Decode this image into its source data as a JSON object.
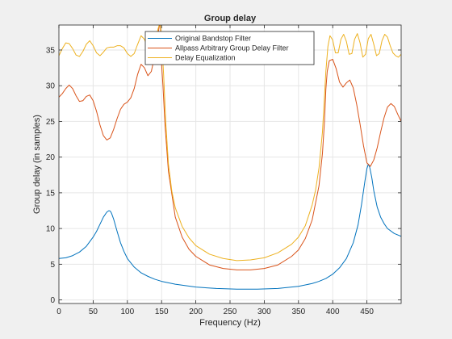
{
  "chart_data": {
    "type": "line",
    "title": "Group delay",
    "xlabel": "Frequency (Hz)",
    "ylabel": "Group delay (in samples)",
    "xlim": [
      0,
      500
    ],
    "ylim": [
      -0.5,
      38.5
    ],
    "xticks": [
      0,
      50,
      100,
      150,
      200,
      250,
      300,
      350,
      400,
      450
    ],
    "yticks": [
      0,
      5,
      10,
      15,
      20,
      25,
      30,
      35
    ],
    "grid": true,
    "legend_position": "top-center",
    "colors": {
      "background": "#f0f0f0",
      "axes_background": "#ffffff",
      "grid": "#e6e6e6",
      "axis": "#262626"
    },
    "series": [
      {
        "name": "Original Bandstop Filter",
        "color": "#0072bd",
        "x": [
          0,
          10,
          20,
          30,
          40,
          50,
          55,
          60,
          65,
          70,
          73,
          75,
          77,
          80,
          85,
          90,
          95,
          100,
          110,
          120,
          130,
          140,
          150,
          170,
          200,
          230,
          260,
          290,
          320,
          350,
          370,
          380,
          390,
          400,
          410,
          420,
          430,
          437,
          442,
          447,
          450,
          452,
          454,
          457,
          460,
          465,
          470,
          475,
          480,
          490,
          500
        ],
        "values": [
          5.8,
          5.9,
          6.2,
          6.7,
          7.5,
          8.8,
          9.6,
          10.6,
          11.6,
          12.3,
          12.5,
          12.45,
          12.1,
          11.3,
          9.6,
          8.0,
          6.8,
          5.8,
          4.6,
          3.8,
          3.3,
          2.9,
          2.6,
          2.2,
          1.8,
          1.6,
          1.5,
          1.5,
          1.6,
          1.9,
          2.3,
          2.6,
          3.0,
          3.6,
          4.5,
          5.8,
          8.0,
          10.5,
          13.3,
          16.6,
          18.4,
          19.0,
          18.6,
          17.2,
          15.3,
          13.0,
          11.6,
          10.7,
          10.0,
          9.3,
          8.9
        ]
      },
      {
        "name": "Allpass Arbitrary Group Delay Filter",
        "color": "#d95319",
        "x": [
          0,
          5,
          10,
          15,
          20,
          25,
          30,
          35,
          40,
          45,
          50,
          55,
          60,
          65,
          70,
          75,
          80,
          85,
          90,
          95,
          100,
          105,
          110,
          115,
          120,
          125,
          130,
          135,
          140,
          143,
          146,
          148,
          150,
          152,
          155,
          160,
          170,
          180,
          190,
          200,
          220,
          240,
          260,
          280,
          300,
          320,
          340,
          350,
          360,
          370,
          380,
          385,
          388,
          390,
          392,
          395,
          400,
          405,
          410,
          415,
          420,
          425,
          430,
          435,
          440,
          445,
          450,
          455,
          460,
          465,
          470,
          475,
          480,
          485,
          490,
          495,
          500
        ],
        "values": [
          28.4,
          28.9,
          29.6,
          30.1,
          29.6,
          28.6,
          27.8,
          27.9,
          28.5,
          28.7,
          27.9,
          26.4,
          24.5,
          23.0,
          22.4,
          22.7,
          23.9,
          25.4,
          26.7,
          27.4,
          27.7,
          28.3,
          29.6,
          31.6,
          33.0,
          32.5,
          31.4,
          32.0,
          34.2,
          36.0,
          38.0,
          39.0,
          33.0,
          30.0,
          24.5,
          18.0,
          11.6,
          8.8,
          7.1,
          6.1,
          4.9,
          4.4,
          4.2,
          4.2,
          4.4,
          4.9,
          6.1,
          7.0,
          8.6,
          11.2,
          16.0,
          20.5,
          25.0,
          29.5,
          32.0,
          33.5,
          33.7,
          32.4,
          30.5,
          29.8,
          30.4,
          30.8,
          29.7,
          27.4,
          24.6,
          21.6,
          19.2,
          18.7,
          19.6,
          21.3,
          23.5,
          25.5,
          27.0,
          27.5,
          27.1,
          26.0,
          25.0
        ]
      },
      {
        "name": "Delay Equalization",
        "color": "#edb120",
        "x": [
          0,
          5,
          10,
          15,
          20,
          25,
          30,
          35,
          40,
          45,
          50,
          55,
          60,
          65,
          70,
          75,
          80,
          85,
          90,
          95,
          100,
          105,
          110,
          115,
          120,
          125,
          130,
          135,
          140,
          145,
          148,
          150,
          153,
          156,
          160,
          165,
          170,
          180,
          190,
          200,
          220,
          240,
          260,
          280,
          300,
          320,
          340,
          350,
          360,
          370,
          375,
          380,
          385,
          388,
          390,
          393,
          396,
          400,
          404,
          408,
          412,
          416,
          420,
          424,
          428,
          432,
          436,
          440,
          444,
          448,
          452,
          456,
          460,
          464,
          468,
          472,
          476,
          480,
          484,
          488,
          492,
          496,
          500
        ],
        "values": [
          34.2,
          35.2,
          36.0,
          35.9,
          35.2,
          34.3,
          34.1,
          34.8,
          35.8,
          36.3,
          35.6,
          34.6,
          34.2,
          34.7,
          35.3,
          35.4,
          35.4,
          35.6,
          35.6,
          35.3,
          34.5,
          34.1,
          34.5,
          35.8,
          37.0,
          36.5,
          35.2,
          35.0,
          36.2,
          38.0,
          39.0,
          36.5,
          31.5,
          25.0,
          19.0,
          15.2,
          12.9,
          10.3,
          8.7,
          7.6,
          6.4,
          5.8,
          5.5,
          5.6,
          5.9,
          6.6,
          7.8,
          8.8,
          10.4,
          13.3,
          15.4,
          18.5,
          23.5,
          28.5,
          32.0,
          35.5,
          37.0,
          36.4,
          34.6,
          34.6,
          36.5,
          37.2,
          36.2,
          34.4,
          34.5,
          36.5,
          37.3,
          36.0,
          34.0,
          34.4,
          36.6,
          37.2,
          35.8,
          34.2,
          34.5,
          36.3,
          37.2,
          36.8,
          35.6,
          34.6,
          34.2,
          34.0,
          34.4
        ]
      }
    ]
  }
}
